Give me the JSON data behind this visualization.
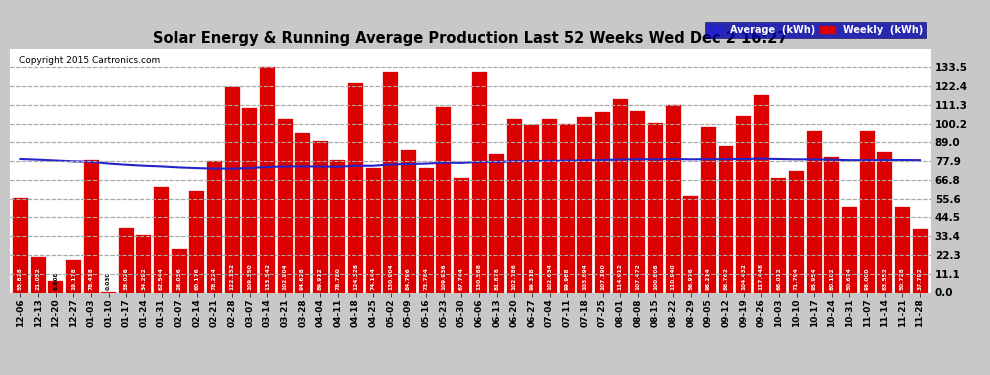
{
  "title": "Solar Energy & Running Average Production Last 52 Weeks Wed Dec 2 16:27",
  "copyright": "Copyright 2015 Cartronics.com",
  "bar_color": "#dd0000",
  "avg_color": "#2222cc",
  "background_color": "#c8c8c8",
  "plot_bg_color": "#ffffff",
  "grid_color": "#aaaaaa",
  "yticks": [
    0.0,
    11.1,
    22.3,
    33.4,
    44.5,
    55.6,
    66.8,
    77.9,
    89.0,
    100.2,
    111.3,
    122.4,
    133.5
  ],
  "categories": [
    "12-06",
    "12-13",
    "12-20",
    "12-27",
    "01-03",
    "01-10",
    "01-17",
    "01-24",
    "01-31",
    "02-07",
    "02-14",
    "02-21",
    "02-28",
    "03-07",
    "03-14",
    "03-21",
    "03-28",
    "04-04",
    "04-11",
    "04-18",
    "04-25",
    "05-02",
    "05-09",
    "05-16",
    "05-23",
    "05-30",
    "06-06",
    "06-13",
    "06-20",
    "06-27",
    "07-04",
    "07-11",
    "07-18",
    "07-25",
    "08-01",
    "08-08",
    "08-15",
    "08-22",
    "08-29",
    "09-05",
    "09-12",
    "09-19",
    "09-26",
    "10-03",
    "10-10",
    "10-17",
    "10-24",
    "10-31",
    "11-07",
    "11-14",
    "11-21",
    "11-28"
  ],
  "weekly_kwh": [
    55.828,
    21.052,
    6.808,
    19.178,
    78.418,
    0.03,
    38.026,
    34.292,
    62.544,
    26.036,
    60.176,
    78.224,
    122.152,
    109.35,
    133.542,
    102.904,
    94.628,
    89.912,
    78.78,
    124.328,
    74.144,
    130.904,
    84.796,
    73.784,
    109.936,
    67.744,
    130.588,
    81.878,
    102.786,
    99.318,
    102.634,
    99.968,
    103.894,
    107.19,
    114.912,
    107.472,
    100.808,
    110.94,
    56.976,
    98.214,
    86.762,
    104.432,
    117.448,
    68.012,
    71.794,
    95.954,
    80.102,
    50.674,
    96.0,
    83.552,
    50.728,
    37.792
  ],
  "avg_kwh": [
    79.2,
    78.8,
    78.3,
    77.8,
    77.6,
    76.5,
    75.8,
    75.2,
    74.8,
    74.2,
    73.8,
    73.5,
    73.5,
    73.8,
    74.5,
    74.8,
    74.8,
    74.8,
    74.6,
    75.2,
    75.2,
    76.0,
    76.2,
    76.5,
    77.0,
    76.9,
    77.5,
    77.5,
    77.8,
    78.0,
    78.1,
    78.2,
    78.4,
    78.6,
    78.9,
    79.1,
    79.0,
    79.2,
    79.0,
    79.1,
    79.1,
    79.2,
    79.4,
    79.2,
    79.0,
    79.0,
    78.8,
    78.5,
    78.5,
    78.5,
    78.6,
    78.5
  ],
  "legend_avg_label": "Average  (kWh)",
  "legend_weekly_label": "Weekly  (kWh)"
}
